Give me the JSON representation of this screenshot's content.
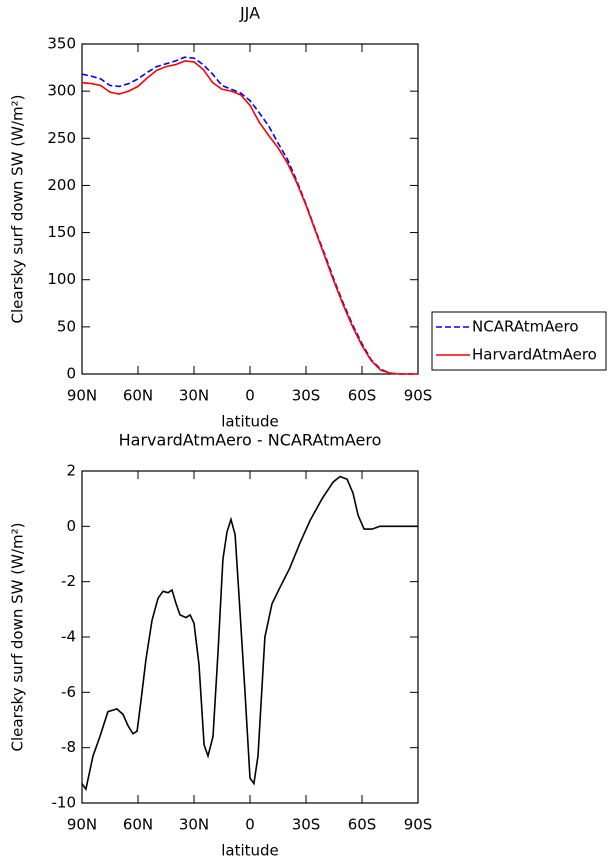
{
  "chart_data": [
    {
      "type": "line",
      "title": "JJA",
      "xlabel": "latitude",
      "ylabel": "Clearsky surf down SW (W/m²)",
      "x": [
        90,
        85,
        80,
        75,
        70,
        65,
        60,
        55,
        50,
        45,
        40,
        35,
        30,
        25,
        20,
        15,
        10,
        5,
        0,
        -5,
        -10,
        -15,
        -20,
        -25,
        -30,
        -35,
        -40,
        -45,
        -50,
        -55,
        -60,
        -65,
        -70,
        -75,
        -80,
        -85,
        -90
      ],
      "series": [
        {
          "name": "NCARAtmAero",
          "color": "#0000ff",
          "style": "dashed",
          "values": [
            318,
            316,
            313,
            306,
            305,
            308,
            313,
            320,
            326,
            329,
            332,
            336,
            335,
            328,
            318,
            306,
            302,
            298,
            290,
            277,
            263,
            245,
            228,
            205,
            180,
            153,
            127,
            100,
            75,
            52,
            32,
            15,
            5,
            1,
            0,
            0,
            0
          ]
        },
        {
          "name": "HarvardAtmAero",
          "color": "#ff0000",
          "style": "solid",
          "values": [
            309,
            308,
            306,
            299,
            297,
            300,
            305,
            314,
            322,
            326,
            328,
            332,
            331,
            323,
            309,
            302,
            300,
            296,
            285,
            267,
            253,
            240,
            224,
            203,
            179,
            152,
            125,
            98,
            73,
            50,
            30,
            14,
            4,
            1,
            0,
            0,
            0
          ]
        }
      ],
      "xlim": [
        90,
        -90
      ],
      "xticks": [
        {
          "value": 90,
          "label": "90N"
        },
        {
          "value": 60,
          "label": "60N"
        },
        {
          "value": 30,
          "label": "30N"
        },
        0,
        {
          "value": -30,
          "label": "30S"
        },
        {
          "value": -60,
          "label": "60S"
        },
        {
          "value": -90,
          "label": "90S"
        }
      ],
      "ylim": [
        0,
        350
      ],
      "yticks": [
        0,
        50,
        100,
        150,
        200,
        250,
        300,
        350
      ],
      "legend": "right"
    },
    {
      "type": "line",
      "title": "HarvardAtmAero - NCARAtmAero",
      "xlabel": "latitude",
      "ylabel": "Clearsky surf down SW (W/m²)",
      "x": [
        90,
        87.9,
        84.1,
        80.4,
        76.1,
        71.3,
        68.0,
        65.4,
        62.7,
        60.5,
        58.4,
        55.7,
        52.5,
        49.3,
        46.6,
        43.9,
        41.8,
        39.6,
        37.5,
        34.3,
        32.1,
        30.0,
        27.3,
        24.6,
        22.5,
        19.8,
        17.1,
        14.5,
        12.3,
        10.2,
        8.0,
        5.9,
        2.7,
        0,
        -2.1,
        -4.3,
        -8.0,
        -11.8,
        -16.1,
        -21.4,
        -26.8,
        -32.1,
        -38.6,
        -44.5,
        -48.2,
        -52.0,
        -55.2,
        -57.9,
        -61.1,
        -65.4,
        -69.6,
        -77.7,
        -90
      ],
      "values": [
        -9.3,
        -9.5,
        -8.3,
        -7.6,
        -6.7,
        -6.6,
        -6.8,
        -7.2,
        -7.5,
        -7.4,
        -6.3,
        -4.8,
        -3.4,
        -2.6,
        -2.35,
        -2.4,
        -2.3,
        -2.8,
        -3.2,
        -3.3,
        -3.2,
        -3.5,
        -5.0,
        -7.9,
        -8.3,
        -7.6,
        -4.5,
        -1.2,
        -0.2,
        0.25,
        -0.3,
        -2.5,
        -6.0,
        -9.1,
        -9.3,
        -8.3,
        -4.0,
        -2.8,
        -2.2,
        -1.5,
        -0.6,
        0.2,
        1.0,
        1.6,
        1.8,
        1.7,
        1.2,
        0.4,
        -0.1,
        -0.1,
        0,
        0,
        0
      ],
      "color": "#000000",
      "xlim": [
        90,
        -90
      ],
      "xticks": [
        {
          "value": 90,
          "label": "90N"
        },
        {
          "value": 60,
          "label": "60N"
        },
        {
          "value": 30,
          "label": "30N"
        },
        0,
        {
          "value": -30,
          "label": "30S"
        },
        {
          "value": -60,
          "label": "60S"
        },
        {
          "value": -90,
          "label": "90S"
        }
      ],
      "ylim": [
        -10,
        2
      ],
      "yticks": [
        -10,
        -8,
        -6,
        -4,
        -2,
        0,
        2
      ]
    }
  ]
}
